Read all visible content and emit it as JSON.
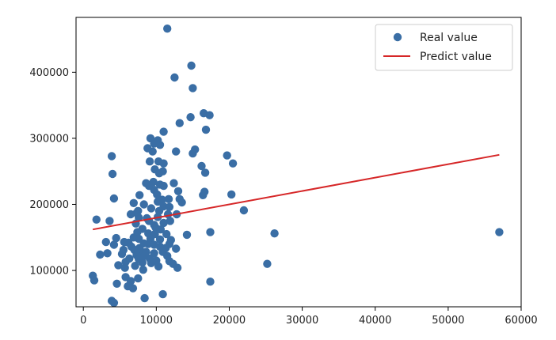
{
  "chart_data": {
    "type": "scatter",
    "title": "",
    "xlabel": "",
    "ylabel": "",
    "xlim": [
      -1000,
      60000
    ],
    "ylim": [
      45000,
      483000
    ],
    "x_ticks": [
      0,
      10000,
      20000,
      30000,
      40000,
      50000,
      60000
    ],
    "y_ticks": [
      100000,
      200000,
      300000,
      400000
    ],
    "grid": false,
    "legend_position": "top-right",
    "series": [
      {
        "name": "Real value",
        "kind": "scatter",
        "color": "#3a6ea5",
        "points": [
          [
            11500,
            466000
          ],
          [
            14800,
            410000
          ],
          [
            12500,
            392000
          ],
          [
            15000,
            376000
          ],
          [
            16500,
            338000
          ],
          [
            17300,
            335000
          ],
          [
            14700,
            332000
          ],
          [
            13200,
            323000
          ],
          [
            16800,
            313000
          ],
          [
            11000,
            310000
          ],
          [
            9200,
            300000
          ],
          [
            10200,
            297000
          ],
          [
            9700,
            292000
          ],
          [
            10500,
            290000
          ],
          [
            8800,
            285000
          ],
          [
            9500,
            280000
          ],
          [
            12700,
            280000
          ],
          [
            15300,
            283000
          ],
          [
            15000,
            277000
          ],
          [
            19700,
            274000
          ],
          [
            3900,
            273000
          ],
          [
            9100,
            265000
          ],
          [
            10300,
            265000
          ],
          [
            11000,
            262000
          ],
          [
            20500,
            262000
          ],
          [
            16200,
            258000
          ],
          [
            9800,
            253000
          ],
          [
            10900,
            250000
          ],
          [
            10400,
            247000
          ],
          [
            16700,
            248000
          ],
          [
            4000,
            246000
          ],
          [
            12400,
            232000
          ],
          [
            8600,
            232000
          ],
          [
            9600,
            234000
          ],
          [
            10500,
            230000
          ],
          [
            11000,
            228000
          ],
          [
            9000,
            228000
          ],
          [
            9700,
            222000
          ],
          [
            13000,
            220000
          ],
          [
            10100,
            215000
          ],
          [
            7700,
            214000
          ],
          [
            16600,
            219000
          ],
          [
            20300,
            215000
          ],
          [
            16400,
            214000
          ],
          [
            4200,
            209000
          ],
          [
            10800,
            207000
          ],
          [
            11700,
            208000
          ],
          [
            13200,
            208000
          ],
          [
            10200,
            204000
          ],
          [
            6900,
            202000
          ],
          [
            13500,
            203000
          ],
          [
            8300,
            200000
          ],
          [
            11000,
            197000
          ],
          [
            11800,
            196000
          ],
          [
            9300,
            194000
          ],
          [
            22000,
            191000
          ],
          [
            7500,
            190000
          ],
          [
            10400,
            190000
          ],
          [
            7300,
            187000
          ],
          [
            11600,
            185000
          ],
          [
            12800,
            185000
          ],
          [
            6500,
            185000
          ],
          [
            10200,
            181000
          ],
          [
            7600,
            180000
          ],
          [
            8700,
            179000
          ],
          [
            1800,
            177000
          ],
          [
            3600,
            175000
          ],
          [
            11900,
            175000
          ],
          [
            9000,
            175000
          ],
          [
            11000,
            172000
          ],
          [
            7200,
            171000
          ],
          [
            9700,
            169000
          ],
          [
            9900,
            165000
          ],
          [
            8100,
            163000
          ],
          [
            10600,
            162000
          ],
          [
            17400,
            158000
          ],
          [
            26200,
            156000
          ],
          [
            57000,
            158000
          ],
          [
            7400,
            158000
          ],
          [
            8900,
            156000
          ],
          [
            9800,
            155000
          ],
          [
            11400,
            155000
          ],
          [
            14200,
            154000
          ],
          [
            4500,
            149000
          ],
          [
            6900,
            150000
          ],
          [
            7600,
            148000
          ],
          [
            9200,
            148000
          ],
          [
            10500,
            147000
          ],
          [
            12000,
            146000
          ],
          [
            3100,
            143000
          ],
          [
            5600,
            143000
          ],
          [
            6200,
            142000
          ],
          [
            8300,
            141000
          ],
          [
            8900,
            140000
          ],
          [
            9700,
            139000
          ],
          [
            11800,
            140000
          ],
          [
            4200,
            139000
          ],
          [
            6600,
            136000
          ],
          [
            7700,
            134000
          ],
          [
            10500,
            136000
          ],
          [
            11300,
            134000
          ],
          [
            12700,
            133000
          ],
          [
            5500,
            131000
          ],
          [
            7000,
            131000
          ],
          [
            7900,
            129000
          ],
          [
            8600,
            128000
          ],
          [
            9700,
            126000
          ],
          [
            10900,
            128000
          ],
          [
            3300,
            126000
          ],
          [
            5300,
            125000
          ],
          [
            7300,
            123000
          ],
          [
            8400,
            122000
          ],
          [
            11500,
            122000
          ],
          [
            2300,
            124000
          ],
          [
            6300,
            118000
          ],
          [
            7600,
            117000
          ],
          [
            9100,
            118000
          ],
          [
            10000,
            115000
          ],
          [
            11800,
            114000
          ],
          [
            5800,
            113000
          ],
          [
            8100,
            112000
          ],
          [
            9300,
            111000
          ],
          [
            12300,
            110000
          ],
          [
            4800,
            108000
          ],
          [
            7100,
            107000
          ],
          [
            10300,
            106000
          ],
          [
            12900,
            104000
          ],
          [
            5700,
            104000
          ],
          [
            25200,
            110000
          ],
          [
            8200,
            101000
          ],
          [
            1300,
            92000
          ],
          [
            1500,
            85000
          ],
          [
            5800,
            90000
          ],
          [
            6500,
            84000
          ],
          [
            4600,
            80000
          ],
          [
            7500,
            88000
          ],
          [
            17400,
            83000
          ],
          [
            6100,
            76000
          ],
          [
            6800,
            73000
          ],
          [
            10900,
            64000
          ],
          [
            8400,
            58000
          ],
          [
            3900,
            54000
          ],
          [
            4200,
            51000
          ]
        ]
      },
      {
        "name": "Predict value",
        "kind": "line",
        "color": "#d62728",
        "points": [
          [
            1300,
            162000
          ],
          [
            57000,
            275000
          ]
        ]
      }
    ]
  }
}
